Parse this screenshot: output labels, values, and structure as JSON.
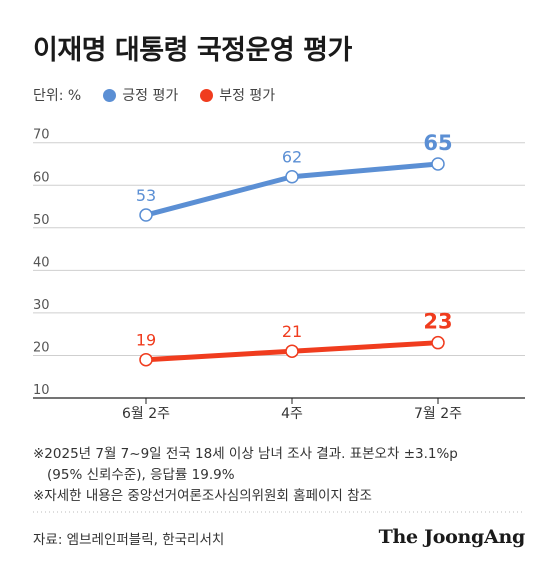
{
  "title": "이재명 대통령 국정운영 평가",
  "legend": {
    "unit": "단위: %",
    "items": [
      {
        "label": "긍정 평가",
        "color": "#5b8fd4"
      },
      {
        "label": "부정 평가",
        "color": "#f03c1e"
      }
    ]
  },
  "chart_data": {
    "type": "line",
    "title": "이재명 대통령 국정운영 평가",
    "unit": "%",
    "categories": [
      "6월 2주",
      "4주",
      "7월 2주"
    ],
    "series": [
      {
        "name": "긍정 평가",
        "color": "#5b8fd4",
        "values": [
          53,
          62,
          65
        ]
      },
      {
        "name": "부정 평가",
        "color": "#f03c1e",
        "values": [
          19,
          21,
          23
        ]
      }
    ],
    "yticks": [
      10,
      20,
      30,
      40,
      50,
      60,
      70
    ],
    "ylim": [
      10,
      75
    ],
    "grid": true,
    "legend_position": "top-left"
  },
  "footnotes": [
    "※2025년 7월 7~9일 전국 18세 이상 남녀 조사 결과. 표본오차 ±3.1%p",
    "(95% 신뢰수준), 응답률 19.9%",
    "※자세한 내용은 중앙선거여론조사심의위원회 홈페이지 참조"
  ],
  "source": "자료: 엠브레인퍼블릭, 한국리서치",
  "brand": "The JoongAng"
}
